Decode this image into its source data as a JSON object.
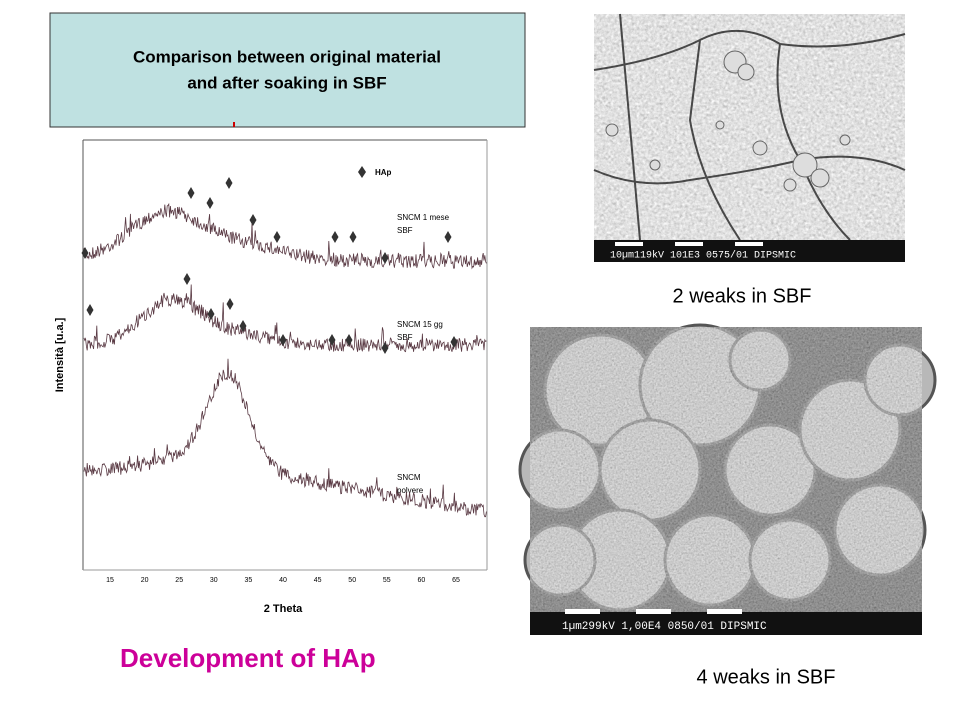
{
  "title_lines": [
    "Comparison between original material",
    "and after soaking in SBF"
  ],
  "xrd": {
    "legend": "HAp",
    "curve_labels": [
      [
        "SNCM 1 mese",
        "SBF"
      ],
      [
        "SNCM 15 gg",
        "SBF"
      ],
      [
        "SNCM",
        "polvere"
      ]
    ],
    "y_label": "Intensità [u.a.]",
    "x_label": "2 Theta",
    "x_ticks": [
      15,
      20,
      25,
      30,
      35,
      40,
      45,
      50,
      55,
      60,
      65
    ]
  },
  "caption": "Development of HAp",
  "sem": [
    {
      "scale": "10µm119kV 101E3 0575/01 DIPSMIC",
      "caption": "2 weaks in SBF"
    },
    {
      "scale": "1µm299kV 1,00E4 0850/01 DIPSMIC",
      "caption": "4 weaks in SBF"
    }
  ]
}
